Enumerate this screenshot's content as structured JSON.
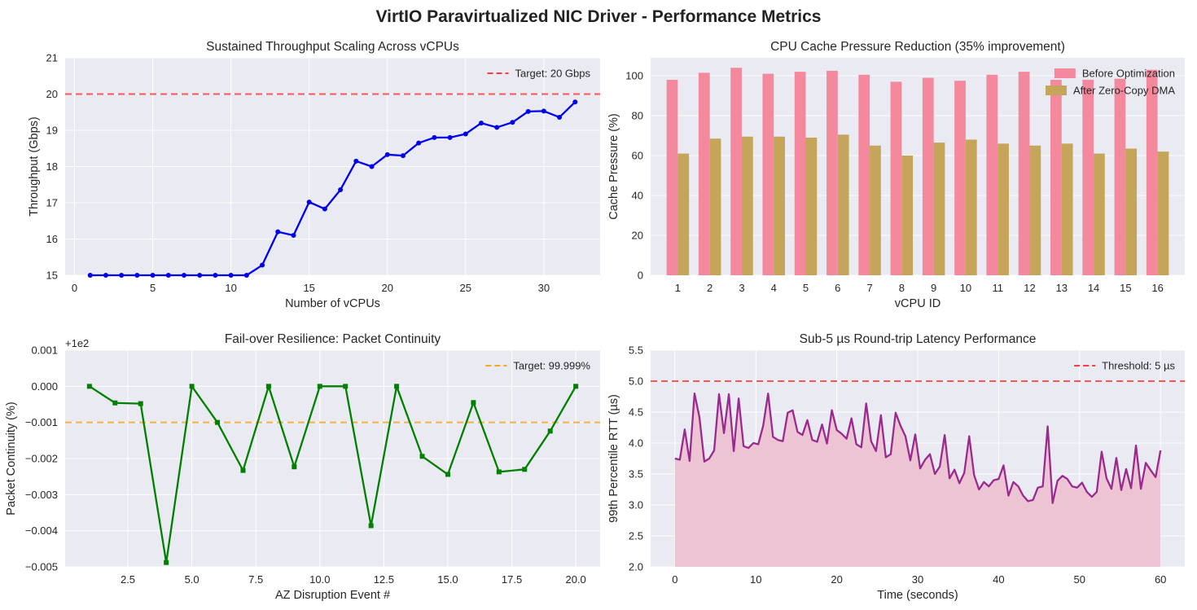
{
  "figure": {
    "title": "VirtIO Paravirtualized NIC Driver - Performance Metrics"
  },
  "colors": {
    "panel_bg": "#eaeaf2",
    "grid": "#ffffff",
    "target_red": "#ff3b3b",
    "target_orange": "#f5a623"
  },
  "chart_data": [
    {
      "type": "line",
      "title": "Sustained Throughput Scaling Across vCPUs",
      "xlabel": "Number of vCPUs",
      "ylabel": "Throughput (Gbps)",
      "xlim": [
        -0.6,
        33.6
      ],
      "ylim": [
        15,
        21
      ],
      "xticks": [
        0,
        5,
        10,
        15,
        20,
        25,
        30
      ],
      "yticks": [
        15,
        16,
        17,
        18,
        19,
        20,
        21
      ],
      "grid": true,
      "legend_position": "upper right",
      "reference_line": {
        "y": 20,
        "label": "Target: 20 Gbps",
        "color": "#ff3b3b"
      },
      "series": [
        {
          "color": "#0000ee",
          "marker": "circle",
          "x": [
            1,
            2,
            3,
            4,
            5,
            6,
            7,
            8,
            9,
            10,
            11,
            12,
            13,
            14,
            15,
            16,
            17,
            18,
            19,
            20,
            21,
            22,
            23,
            24,
            25,
            26,
            27,
            28,
            29,
            30,
            31,
            32
          ],
          "values": [
            15.0,
            15.0,
            15.0,
            15.0,
            15.0,
            15.0,
            15.0,
            15.0,
            15.0,
            15.0,
            15.0,
            15.28,
            16.2,
            16.1,
            17.02,
            16.83,
            17.36,
            18.15,
            18.0,
            18.33,
            18.3,
            18.65,
            18.8,
            18.8,
            18.9,
            19.2,
            19.08,
            19.22,
            19.52,
            19.53,
            19.36,
            19.78
          ]
        }
      ]
    },
    {
      "type": "bar",
      "title": "CPU Cache Pressure Reduction (35% improvement)",
      "xlabel": "vCPU ID",
      "ylabel": "Cache Pressure (%)",
      "ylim": [
        0,
        109
      ],
      "yticks": [
        0,
        20,
        40,
        60,
        80,
        100
      ],
      "grid": true,
      "legend_position": "upper right",
      "categories": [
        "1",
        "2",
        "3",
        "4",
        "5",
        "6",
        "7",
        "8",
        "9",
        "10",
        "11",
        "12",
        "13",
        "14",
        "15",
        "16"
      ],
      "series": [
        {
          "name": "Before Optimization",
          "color": "#f4899e",
          "values": [
            98,
            101.5,
            104,
            101,
            102,
            102.5,
            100.5,
            97,
            99,
            97.5,
            100.5,
            102,
            98,
            98,
            98.5,
            103
          ]
        },
        {
          "name": "After Zero-Copy DMA",
          "color": "#c4a55a",
          "values": [
            61,
            68.5,
            69.5,
            69.5,
            69,
            70.5,
            65,
            60,
            66.5,
            68,
            66,
            65,
            66,
            61,
            63.5,
            62
          ]
        }
      ]
    },
    {
      "type": "line",
      "title": "Fail-over Resilience: Packet Continuity",
      "xlabel": "AZ Disruption Event #",
      "ylabel": "Packet Continuity (%)",
      "offset_text": "+1e2",
      "xlim": [
        0.05,
        20.95
      ],
      "ylim": [
        -0.005,
        0.001
      ],
      "xticks": [
        2.5,
        5.0,
        7.5,
        10.0,
        12.5,
        15.0,
        17.5,
        20.0
      ],
      "xtick_labels": [
        "2.5",
        "5.0",
        "7.5",
        "10.0",
        "12.5",
        "15.0",
        "17.5",
        "20.0"
      ],
      "yticks": [
        -0.005,
        -0.004,
        -0.003,
        -0.002,
        -0.001,
        0.0,
        0.001
      ],
      "ytick_labels": [
        "−0.005",
        "−0.004",
        "−0.003",
        "−0.002",
        "−0.001",
        "0.000",
        "0.001"
      ],
      "grid": true,
      "legend_position": "upper right",
      "reference_line": {
        "y": -0.001,
        "label": "Target: 99.999%",
        "color": "#f5a623"
      },
      "series": [
        {
          "color": "#008000",
          "marker": "square",
          "x": [
            1,
            2,
            3,
            4,
            5,
            6,
            7,
            8,
            9,
            10,
            11,
            12,
            13,
            14,
            15,
            16,
            17,
            18,
            19,
            20
          ],
          "values": [
            0.0,
            -0.00046,
            -0.00048,
            -0.00488,
            0.0,
            -0.001,
            -0.00233,
            0.0,
            -0.00223,
            0.0,
            0.0,
            -0.00386,
            0.0,
            -0.00194,
            -0.00244,
            -0.00045,
            -0.00237,
            -0.0023,
            -0.00124,
            0.0
          ]
        }
      ]
    },
    {
      "type": "area",
      "title": "Sub-5 µs Round-trip Latency Performance",
      "xlabel": "Time (seconds)",
      "ylabel": "99th Percentile RTT (µs)",
      "xlim": [
        -3,
        63
      ],
      "ylim": [
        2.0,
        5.5
      ],
      "xticks": [
        0,
        10,
        20,
        30,
        40,
        50,
        60
      ],
      "yticks": [
        2.0,
        2.5,
        3.0,
        3.5,
        4.0,
        4.5,
        5.0,
        5.5
      ],
      "ytick_labels": [
        "2.0",
        "2.5",
        "3.0",
        "3.5",
        "4.0",
        "4.5",
        "5.0",
        "5.5"
      ],
      "grid": true,
      "legend_position": "upper right",
      "reference_line": {
        "y": 5,
        "label": "Threshold: 5 µs",
        "color": "#ff3b3b"
      },
      "series": [
        {
          "color": "#9b2a8f",
          "fill": "#ecc4d4",
          "x_start": 0,
          "x_end": 60,
          "values": [
            3.75,
            3.73,
            4.22,
            3.71,
            4.8,
            4.42,
            3.7,
            3.75,
            3.88,
            4.79,
            4.16,
            4.79,
            3.87,
            4.72,
            3.95,
            3.92,
            4.0,
            3.98,
            4.28,
            4.8,
            4.1,
            4.05,
            4.03,
            4.49,
            4.53,
            4.18,
            4.13,
            4.37,
            4.05,
            4.02,
            4.3,
            3.99,
            4.53,
            4.21,
            4.15,
            4.07,
            4.4,
            3.98,
            3.93,
            4.64,
            4.03,
            3.87,
            4.45,
            3.77,
            3.82,
            4.49,
            4.28,
            4.11,
            3.72,
            4.14,
            3.59,
            3.73,
            3.82,
            3.5,
            3.62,
            4.13,
            3.43,
            3.57,
            3.35,
            3.52,
            4.11,
            3.48,
            3.25,
            3.37,
            3.3,
            3.4,
            3.42,
            3.64,
            3.15,
            3.37,
            3.3,
            3.15,
            3.06,
            3.08,
            3.28,
            3.3,
            4.27,
            3.03,
            3.39,
            3.47,
            3.42,
            3.3,
            3.28,
            3.36,
            3.21,
            3.13,
            3.21,
            3.86,
            3.43,
            3.26,
            3.76,
            3.24,
            3.58,
            3.27,
            3.96,
            3.26,
            3.68,
            3.56,
            3.45,
            3.88
          ]
        }
      ]
    }
  ]
}
